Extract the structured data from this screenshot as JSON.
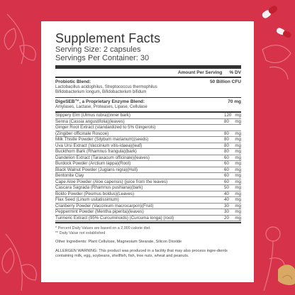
{
  "panel": {
    "title": "Supplement Facts",
    "serving_size": "Serving Size: 2 capsules",
    "servings_per_container": "Servings Per Container: 30",
    "header_amount": "Amount Per Serving",
    "header_dv": "% DV",
    "probiotic": {
      "name": "Probiotic Blend:",
      "amount": "50 Billion CFU",
      "line1": "Lactobacillus acidophilus, Streptococcus thermophilus",
      "line2": "Bifidobacterium longum, Bifidobacterium bifidum"
    },
    "enzyme": {
      "name": "DigeSEB™, a Proprietary Enzyme Blend:",
      "amount": "70 mg",
      "line1": "Amylases, Lactase, Proteases, Lipase, Cellulase"
    },
    "ingredients": [
      {
        "name": "Slippery Elm (Ulmus rubra)(inner bark)",
        "qty": "120",
        "unit": "mg"
      },
      {
        "name": "Senna (Cassia angustifolia)(leaves)",
        "qty": "80",
        "unit": "mg"
      },
      {
        "name": "Ginger Root Extract (standardized to 5% Gingerols)",
        "qty": "",
        "unit": ""
      },
      {
        "name": "(Zingiber officinale Roscoe)",
        "qty": "80",
        "unit": "mg"
      },
      {
        "name": "Milk Thistle Powder (Silybum marianum)(seeds)",
        "qty": "80",
        "unit": "mg"
      },
      {
        "name": "Uva Ursi Extract (Vaccinium vitis-idaea)(leaf)",
        "qty": "80",
        "unit": "mg"
      },
      {
        "name": "Buckthorn Bark (Rhamnus frangula)(bark)",
        "qty": "80",
        "unit": "mg"
      },
      {
        "name": "Dandelion Extract (Taraxacum officinale)(leaves)",
        "qty": "60",
        "unit": "mg"
      },
      {
        "name": "Burdock Powder (Arctium lappa)(Root)",
        "qty": "60",
        "unit": "mg"
      },
      {
        "name": "Black Walnut Powder (Juglans nigra)(Hull)",
        "qty": "60",
        "unit": "mg"
      },
      {
        "name": "Bentonite Clay",
        "qty": "60",
        "unit": "mg"
      },
      {
        "name": "Cape Aloe Powder (Aloe capensis) (juice from the leaves)",
        "qty": "60",
        "unit": "mg"
      },
      {
        "name": "Cascara Sagrada (Rhamnus pushiana)(bark)",
        "qty": "50",
        "unit": "mg"
      },
      {
        "name": "Boldo Powder (Peumus boldus)(Leaves)",
        "qty": "40",
        "unit": "mg"
      },
      {
        "name": "Flax Seed (Linum usitatissimum)",
        "qty": "40",
        "unit": "mg"
      },
      {
        "name": "Cranberry Powder (Vaccinium macrocarpon)(Fruit)",
        "qty": "30",
        "unit": "mg"
      },
      {
        "name": "Peppermint Powder (Mentha piperita)(leaves)",
        "qty": "30",
        "unit": "mg"
      },
      {
        "name": "Turmeric Extract (95% Curcuminoids) (Curcuma longa) (root)",
        "qty": "20",
        "unit": "mg"
      }
    ],
    "footnote1": "* Percent Daily Values are based on a 2,000 calorie diet.",
    "footnote2": "** Daily Value not established",
    "other_ingredients": "Other Ingredients: Plant Cellulose, Magnesium Stearate, Silicon Dioxide",
    "allergen_warning": "ALLERGEN WARNING: This product was produced in a facility that may also process ingre-dients containing milk, egg, soybeans, shellfish, fish, tree nuts, wheat and peanuts."
  },
  "colors": {
    "background": "#d6334a",
    "panel": "#ffffff",
    "line_art": "#e9677a",
    "capsule_red": "#c2202f",
    "capsule_white": "#f2f2f2"
  }
}
